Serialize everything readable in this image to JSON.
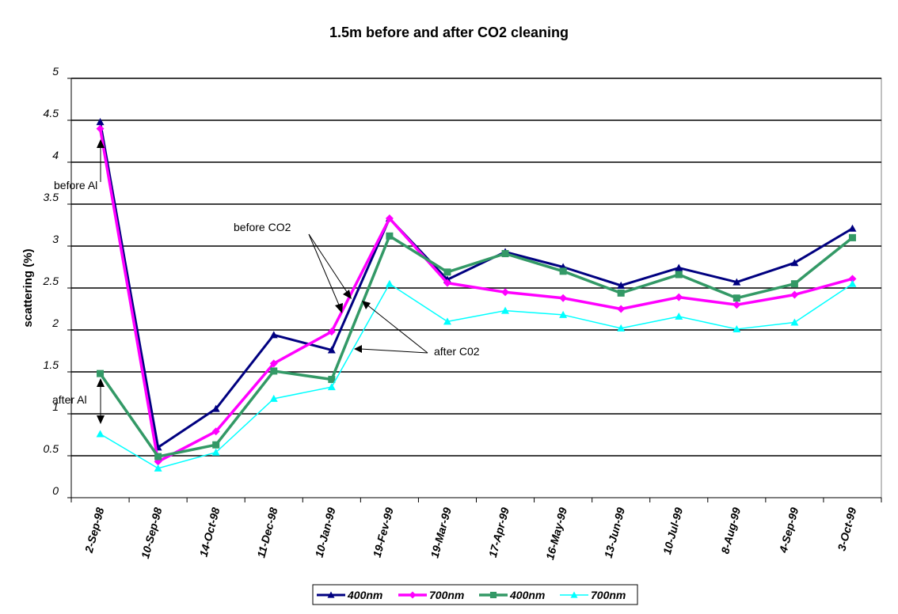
{
  "chart_data": {
    "type": "line",
    "title": "1.5m before and after CO2 cleaning",
    "xlabel": "",
    "ylabel": "scattering (%)",
    "ylim": [
      0,
      5
    ],
    "yticks": [
      "0",
      "0.5",
      "1",
      "1.5",
      "2",
      "2.5",
      "3",
      "3.5",
      "4",
      "4.5",
      "5"
    ],
    "grid": "horizontal",
    "legend_position": "bottom",
    "categories": [
      "2-Sep-98",
      "10-Sep-98",
      "14-Oct-98",
      "11-Dec-98",
      "10-Jan-99",
      "19-Fev-99",
      "19-Mar-99",
      "17-Apr-99",
      "16-May-99",
      "13-Jun-99",
      "10-Jul-99",
      "8-Aug-99",
      "4-Sep-99",
      "3-Oct-99"
    ],
    "series": [
      {
        "name": "400nm",
        "color": "#000080",
        "marker": "triangle",
        "width": 3,
        "values": [
          4.48,
          0.6,
          1.06,
          1.94,
          1.76,
          3.33,
          2.6,
          2.93,
          2.75,
          2.53,
          2.74,
          2.57,
          2.8,
          3.21
        ]
      },
      {
        "name": "700nm",
        "color": "#ff00ff",
        "marker": "diamond",
        "width": 3.5,
        "values": [
          4.4,
          0.43,
          0.79,
          1.6,
          1.98,
          3.33,
          2.56,
          2.45,
          2.38,
          2.25,
          2.39,
          2.3,
          2.42,
          2.61
        ]
      },
      {
        "name": "400nm",
        "color": "#339966",
        "marker": "square",
        "width": 3.5,
        "values": [
          1.48,
          0.49,
          0.63,
          1.51,
          1.41,
          3.12,
          2.69,
          2.91,
          2.7,
          2.44,
          2.66,
          2.38,
          2.55,
          3.1
        ]
      },
      {
        "name": "700nm",
        "color": "#00ffff",
        "marker": "triangle",
        "width": 1.5,
        "values": [
          0.76,
          0.35,
          0.54,
          1.18,
          1.32,
          2.55,
          2.1,
          2.23,
          2.18,
          2.02,
          2.16,
          2.01,
          2.09,
          2.55
        ]
      }
    ],
    "annotations": [
      "before Al",
      "after Al",
      "before CO2",
      "after C02"
    ]
  }
}
